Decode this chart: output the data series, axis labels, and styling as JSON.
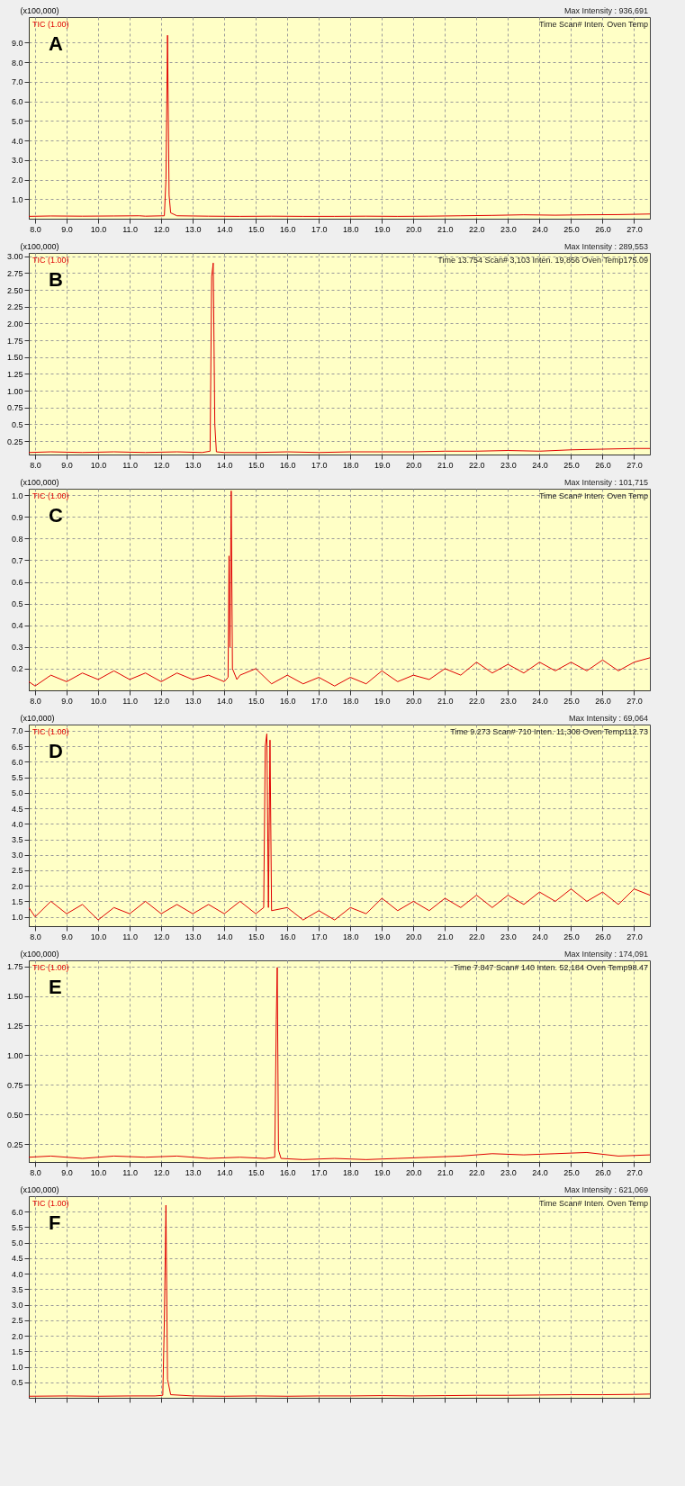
{
  "chart_data": [
    {
      "type": "line",
      "title": "A",
      "ylabel": "(x100,000)",
      "legend": "top left",
      "grid": true,
      "annotations": [
        "Max Intensity : 936,691",
        "Time   Scan#   Inten.   Oven Temp"
      ],
      "xlim": [
        7.8,
        27.5
      ],
      "xticks": [
        {
          "value": 8,
          "label": "8.0"
        },
        {
          "value": 9,
          "label": "9.0"
        },
        {
          "value": 10,
          "label": "10.0"
        },
        {
          "value": 11,
          "label": "11.0"
        },
        {
          "value": 12,
          "label": "12.0"
        },
        {
          "value": 13,
          "label": "13.0"
        },
        {
          "value": 14,
          "label": "14.0"
        },
        {
          "value": 15,
          "label": "15.0"
        },
        {
          "value": 16,
          "label": "16.0"
        },
        {
          "value": 17,
          "label": "17.0"
        },
        {
          "value": 18,
          "label": "18.0"
        },
        {
          "value": 19,
          "label": "19.0"
        },
        {
          "value": 20,
          "label": "20.0"
        },
        {
          "value": 21,
          "label": "21.0"
        },
        {
          "value": 22,
          "label": "22.0"
        },
        {
          "value": 23,
          "label": "23.0"
        },
        {
          "value": 24,
          "label": "24.0"
        },
        {
          "value": 25,
          "label": "25.0"
        },
        {
          "value": 26,
          "label": "26.0"
        },
        {
          "value": 27,
          "label": "27.0"
        }
      ],
      "ylim": [
        0,
        10.3
      ],
      "yticks": [
        {
          "value": 1,
          "label": "1.0"
        },
        {
          "value": 2,
          "label": "2.0"
        },
        {
          "value": 3,
          "label": "3.0"
        },
        {
          "value": 4,
          "label": "4.0"
        },
        {
          "value": 5,
          "label": "5.0"
        },
        {
          "value": 6,
          "label": "6.0"
        },
        {
          "value": 7,
          "label": "7.0"
        },
        {
          "value": 8,
          "label": "8.0"
        },
        {
          "value": 9,
          "label": "9.0"
        }
      ],
      "series": [
        {
          "name": "TIC (1.00)",
          "color": "#e00000",
          "x": [
            7.8,
            8.5,
            9.5,
            10.5,
            11.3,
            11.5,
            12.1,
            12.15,
            12.2,
            12.25,
            12.3,
            12.5,
            13.5,
            14.5,
            15.5,
            16.5,
            17.5,
            18.5,
            19.5,
            20.5,
            21.5,
            22.5,
            23.5,
            24.5,
            25.5,
            26.5,
            27.5
          ],
          "values": [
            0.12,
            0.14,
            0.13,
            0.14,
            0.15,
            0.13,
            0.15,
            2.0,
            9.37,
            1.2,
            0.3,
            0.15,
            0.13,
            0.12,
            0.13,
            0.12,
            0.12,
            0.13,
            0.12,
            0.13,
            0.15,
            0.17,
            0.2,
            0.18,
            0.2,
            0.21,
            0.24
          ]
        }
      ]
    },
    {
      "type": "line",
      "title": "B",
      "ylabel": "(x100,000)",
      "legend": "top left",
      "grid": true,
      "annotations": [
        "Max Intensity : 289,553",
        "Time 13.754 Scan# 3,103 Inten. 19,856 Oven Temp175.09"
      ],
      "xlim": [
        7.8,
        27.5
      ],
      "xticks": [
        {
          "value": 8,
          "label": "8.0"
        },
        {
          "value": 9,
          "label": "9.0"
        },
        {
          "value": 10,
          "label": "10.0"
        },
        {
          "value": 11,
          "label": "11.0"
        },
        {
          "value": 12,
          "label": "12.0"
        },
        {
          "value": 13,
          "label": "13.0"
        },
        {
          "value": 14,
          "label": "14.0"
        },
        {
          "value": 15,
          "label": "15.0"
        },
        {
          "value": 16,
          "label": "16.0"
        },
        {
          "value": 17,
          "label": "17.0"
        },
        {
          "value": 18,
          "label": "18.0"
        },
        {
          "value": 19,
          "label": "19.0"
        },
        {
          "value": 20,
          "label": "20.0"
        },
        {
          "value": 21,
          "label": "21.0"
        },
        {
          "value": 22,
          "label": "22.0"
        },
        {
          "value": 23,
          "label": "23.0"
        },
        {
          "value": 24,
          "label": "24.0"
        },
        {
          "value": 25,
          "label": "25.0"
        },
        {
          "value": 26,
          "label": "26.0"
        },
        {
          "value": 27,
          "label": "27.0"
        }
      ],
      "ylim": [
        0.05,
        3.05
      ],
      "yticks": [
        0.25,
        0.5,
        0.75,
        {
          "value": 1,
          "label": "1.00"
        },
        1.25,
        {
          "value": 1.5,
          "label": "1.50"
        },
        1.75,
        {
          "value": 2,
          "label": "2.00"
        },
        2.25,
        {
          "value": 2.5,
          "label": "2.50"
        },
        2.75,
        {
          "value": 3,
          "label": "3.00"
        }
      ],
      "series": [
        {
          "name": "TIC (1.00)",
          "color": "#e00000",
          "x": [
            7.8,
            8.5,
            9.5,
            10.5,
            11.5,
            12.5,
            13.3,
            13.55,
            13.6,
            13.65,
            13.7,
            13.75,
            14.0,
            15,
            16,
            17,
            18,
            19,
            20,
            21,
            22,
            23,
            24,
            25,
            26,
            27,
            27.5
          ],
          "values": [
            0.08,
            0.09,
            0.08,
            0.09,
            0.08,
            0.09,
            0.08,
            0.1,
            2.7,
            2.9,
            0.5,
            0.09,
            0.08,
            0.08,
            0.09,
            0.08,
            0.09,
            0.09,
            0.09,
            0.1,
            0.1,
            0.11,
            0.1,
            0.12,
            0.13,
            0.14,
            0.14
          ]
        }
      ]
    },
    {
      "type": "line",
      "title": "C",
      "ylabel": "(x100,000)",
      "legend": "top left",
      "grid": true,
      "annotations": [
        "Max Intensity : 101,715",
        "Time   Scan#   Inten.   Oven Temp"
      ],
      "xlim": [
        7.8,
        27.5
      ],
      "xticks": [
        {
          "value": 8,
          "label": "8.0"
        },
        {
          "value": 9,
          "label": "9.0"
        },
        {
          "value": 10,
          "label": "10.0"
        },
        {
          "value": 11,
          "label": "11.0"
        },
        {
          "value": 12,
          "label": "12.0"
        },
        {
          "value": 13,
          "label": "13.0"
        },
        {
          "value": 14,
          "label": "14.0"
        },
        {
          "value": 15,
          "label": "15.0"
        },
        {
          "value": 16,
          "label": "16.0"
        },
        {
          "value": 17,
          "label": "17.0"
        },
        {
          "value": 18,
          "label": "18.0"
        },
        {
          "value": 19,
          "label": "19.0"
        },
        {
          "value": 20,
          "label": "20.0"
        },
        {
          "value": 21,
          "label": "21.0"
        },
        {
          "value": 22,
          "label": "22.0"
        },
        {
          "value": 23,
          "label": "23.0"
        },
        {
          "value": 24,
          "label": "24.0"
        },
        {
          "value": 25,
          "label": "25.0"
        },
        {
          "value": 26,
          "label": "26.0"
        },
        {
          "value": 27,
          "label": "27.0"
        }
      ],
      "ylim": [
        0.1,
        1.03
      ],
      "yticks": [
        0.2,
        0.3,
        0.4,
        0.5,
        0.6,
        0.7,
        0.8,
        0.9,
        {
          "value": 1,
          "label": "1.0"
        }
      ],
      "series": [
        {
          "name": "TIC (1.00)",
          "color": "#e00000",
          "x": [
            7.8,
            8.0,
            8.5,
            9.0,
            9.5,
            10,
            10.5,
            11,
            11.5,
            12,
            12.5,
            13,
            13.5,
            14,
            14.12,
            14.15,
            14.18,
            14.22,
            14.26,
            14.4,
            14.5,
            15,
            15.5,
            16,
            16.5,
            17,
            17.5,
            18,
            18.5,
            19,
            19.5,
            20,
            20.5,
            21,
            21.5,
            22,
            22.5,
            23,
            23.5,
            24,
            24.5,
            25,
            25.5,
            26,
            26.5,
            27,
            27.5
          ],
          "values": [
            0.14,
            0.12,
            0.17,
            0.14,
            0.18,
            0.15,
            0.19,
            0.15,
            0.18,
            0.14,
            0.18,
            0.15,
            0.17,
            0.14,
            0.16,
            0.72,
            0.3,
            1.02,
            0.2,
            0.15,
            0.17,
            0.2,
            0.13,
            0.17,
            0.13,
            0.16,
            0.12,
            0.16,
            0.13,
            0.19,
            0.14,
            0.17,
            0.15,
            0.2,
            0.17,
            0.23,
            0.18,
            0.22,
            0.18,
            0.23,
            0.19,
            0.23,
            0.19,
            0.24,
            0.19,
            0.23,
            0.25
          ]
        }
      ]
    },
    {
      "type": "line",
      "title": "D",
      "ylabel": "(x10,000)",
      "legend": "top left",
      "grid": true,
      "annotations": [
        "Max Intensity : 69,064",
        "Time 9.273 Scan# 710 Inten. 11,308 Oven Temp112.73"
      ],
      "xlim": [
        7.8,
        27.5
      ],
      "xticks": [
        {
          "value": 8,
          "label": "8.0"
        },
        {
          "value": 9,
          "label": "9.0"
        },
        {
          "value": 10,
          "label": "10.0"
        },
        {
          "value": 11,
          "label": "11.0"
        },
        {
          "value": 12,
          "label": "12.0"
        },
        {
          "value": 13,
          "label": "13.0"
        },
        {
          "value": 14,
          "label": "14.0"
        },
        {
          "value": 15,
          "label": "15.0"
        },
        {
          "value": 16,
          "label": "16.0"
        },
        {
          "value": 17,
          "label": "17.0"
        },
        {
          "value": 18,
          "label": "18.0"
        },
        {
          "value": 19,
          "label": "19.0"
        },
        {
          "value": 20,
          "label": "20.0"
        },
        {
          "value": 21,
          "label": "21.0"
        },
        {
          "value": 22,
          "label": "22.0"
        },
        {
          "value": 23,
          "label": "23.0"
        },
        {
          "value": 24,
          "label": "24.0"
        },
        {
          "value": 25,
          "label": "25.0"
        },
        {
          "value": 26,
          "label": "26.0"
        },
        {
          "value": 27,
          "label": "27.0"
        }
      ],
      "ylim": [
        0.7,
        7.2
      ],
      "yticks": [
        {
          "value": 1,
          "label": "1.0"
        },
        1.5,
        {
          "value": 2,
          "label": "2.0"
        },
        2.5,
        {
          "value": 3,
          "label": "3.0"
        },
        3.5,
        {
          "value": 4,
          "label": "4.0"
        },
        4.5,
        {
          "value": 5,
          "label": "5.0"
        },
        5.5,
        {
          "value": 6,
          "label": "6.0"
        },
        6.5,
        {
          "value": 7,
          "label": "7.0"
        }
      ],
      "series": [
        {
          "name": "TIC (1.00)",
          "color": "#e00000",
          "x": [
            7.8,
            8.0,
            8.5,
            9.0,
            9.5,
            10,
            10.5,
            11,
            11.5,
            12,
            12.5,
            13,
            13.5,
            14,
            14.5,
            15,
            15.25,
            15.3,
            15.35,
            15.4,
            15.45,
            15.5,
            16,
            16.5,
            17,
            17.5,
            18,
            18.5,
            19,
            19.5,
            20,
            20.5,
            21,
            21.5,
            22,
            22.5,
            23,
            23.5,
            24,
            24.5,
            25,
            25.5,
            26,
            26.5,
            27,
            27.5
          ],
          "values": [
            1.3,
            1.0,
            1.5,
            1.1,
            1.4,
            0.9,
            1.3,
            1.1,
            1.5,
            1.1,
            1.4,
            1.1,
            1.4,
            1.1,
            1.5,
            1.1,
            1.3,
            6.5,
            6.9,
            1.3,
            6.7,
            1.2,
            1.3,
            0.9,
            1.2,
            0.9,
            1.3,
            1.1,
            1.6,
            1.2,
            1.5,
            1.2,
            1.6,
            1.3,
            1.7,
            1.3,
            1.7,
            1.4,
            1.8,
            1.5,
            1.9,
            1.5,
            1.8,
            1.4,
            1.9,
            1.7
          ]
        }
      ]
    },
    {
      "type": "line",
      "title": "E",
      "ylabel": "(x100,000)",
      "legend": "top left",
      "grid": true,
      "annotations": [
        "Max Intensity : 174,091",
        "Time 7.847 Scan# 140 Inten. 52,184 Oven Temp98.47"
      ],
      "xlim": [
        7.8,
        27.5
      ],
      "xticks": [
        {
          "value": 8,
          "label": "8.0"
        },
        {
          "value": 9,
          "label": "9.0"
        },
        {
          "value": 10,
          "label": "10.0"
        },
        {
          "value": 11,
          "label": "11.0"
        },
        {
          "value": 12,
          "label": "12.0"
        },
        {
          "value": 13,
          "label": "13.0"
        },
        {
          "value": 14,
          "label": "14.0"
        },
        {
          "value": 15,
          "label": "15.0"
        },
        {
          "value": 16,
          "label": "16.0"
        },
        {
          "value": 17,
          "label": "17.0"
        },
        {
          "value": 18,
          "label": "18.0"
        },
        {
          "value": 19,
          "label": "19.0"
        },
        {
          "value": 20,
          "label": "20.0"
        },
        {
          "value": 21,
          "label": "21.0"
        },
        {
          "value": 22,
          "label": "22.0"
        },
        {
          "value": 23,
          "label": "23.0"
        },
        {
          "value": 24,
          "label": "24.0"
        },
        {
          "value": 25,
          "label": "25.0"
        },
        {
          "value": 26,
          "label": "26.0"
        },
        {
          "value": 27,
          "label": "27.0"
        }
      ],
      "ylim": [
        0.1,
        1.8
      ],
      "yticks": [
        0.25,
        {
          "value": 0.5,
          "label": "0.50"
        },
        0.75,
        {
          "value": 1,
          "label": "1.00"
        },
        1.25,
        {
          "value": 1.5,
          "label": "1.50"
        },
        1.75
      ],
      "series": [
        {
          "name": "TIC (1.00)",
          "color": "#e00000",
          "x": [
            7.8,
            8.5,
            9.5,
            10.5,
            11.5,
            12.5,
            13.5,
            14.5,
            15.3,
            15.6,
            15.65,
            15.68,
            15.72,
            15.8,
            16.5,
            17.5,
            18.5,
            19.5,
            20.5,
            21.5,
            22.5,
            23.5,
            24.5,
            25.5,
            26.5,
            27.5
          ],
          "values": [
            0.14,
            0.15,
            0.13,
            0.15,
            0.14,
            0.15,
            0.13,
            0.14,
            0.13,
            0.14,
            1.3,
            1.74,
            0.2,
            0.13,
            0.12,
            0.13,
            0.12,
            0.13,
            0.14,
            0.15,
            0.17,
            0.16,
            0.17,
            0.18,
            0.15,
            0.16
          ]
        }
      ]
    },
    {
      "type": "line",
      "title": "F",
      "ylabel": "(x100,000)",
      "legend": "top left",
      "grid": true,
      "tick_labels": "y",
      "annotations": [
        "Max Intensity : 621,069",
        "Time   Scan#   Inten.   Oven Temp"
      ],
      "xlim": [
        7.8,
        27.5
      ],
      "xticks": [
        8,
        9,
        10,
        11,
        12,
        13,
        14,
        15,
        16,
        17,
        18,
        19,
        20,
        21,
        22,
        23,
        24,
        25,
        26,
        27
      ],
      "ylim": [
        0,
        6.5
      ],
      "yticks": [
        0.5,
        {
          "value": 1,
          "label": "1.0"
        },
        1.5,
        {
          "value": 2,
          "label": "2.0"
        },
        2.5,
        {
          "value": 3,
          "label": "3.0"
        },
        3.5,
        {
          "value": 4,
          "label": "4.0"
        },
        4.5,
        {
          "value": 5,
          "label": "5.0"
        },
        5.5,
        {
          "value": 6,
          "label": "6.0"
        }
      ],
      "series": [
        {
          "name": "TIC (1.00)",
          "color": "#e00000",
          "x": [
            7.8,
            9,
            10,
            11,
            11.8,
            12.05,
            12.1,
            12.15,
            12.2,
            12.3,
            13,
            14,
            15,
            16,
            17,
            18,
            19,
            20,
            21,
            22,
            23,
            24,
            25,
            26,
            27,
            27.5
          ],
          "values": [
            0.05,
            0.06,
            0.05,
            0.06,
            0.06,
            0.08,
            2.5,
            6.21,
            0.6,
            0.1,
            0.06,
            0.05,
            0.06,
            0.05,
            0.06,
            0.06,
            0.07,
            0.06,
            0.07,
            0.08,
            0.08,
            0.09,
            0.1,
            0.1,
            0.11,
            0.12
          ]
        }
      ]
    }
  ]
}
